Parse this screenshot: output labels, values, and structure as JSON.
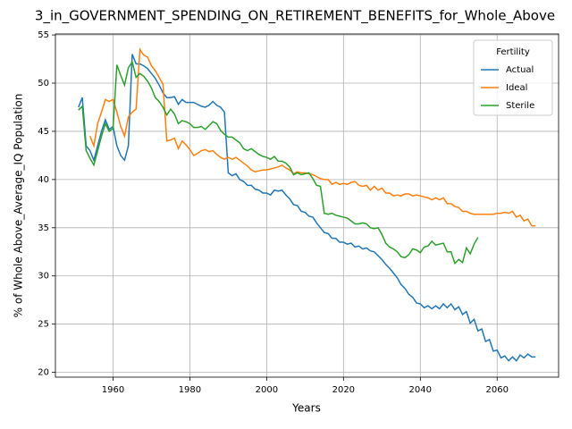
{
  "chart_data": {
    "type": "line",
    "title": "3_in_GOVERNMENT_SPENDING_ON_RETIREMENT_BENEFITS_for_Whole_Above",
    "xlabel": "Years",
    "ylabel": "% of Whole Above_Average_IQ Population",
    "legend_title": "Fertility",
    "legend": "upper right",
    "grid": true,
    "xlim": [
      1945,
      2076
    ],
    "ylim": [
      19.5,
      55.1
    ],
    "xticks": [
      1960,
      1980,
      2000,
      2020,
      2040,
      2060
    ],
    "yticks": [
      20,
      25,
      30,
      35,
      40,
      45,
      50,
      55
    ],
    "x": [
      1951,
      1952,
      1953,
      1954,
      1955,
      1956,
      1957,
      1958,
      1959,
      1960,
      1961,
      1962,
      1963,
      1964,
      1965,
      1966,
      1967,
      1968,
      1969,
      1970,
      1971,
      1972,
      1973,
      1974,
      1975,
      1976,
      1977,
      1978,
      1979,
      1980,
      1981,
      1982,
      1983,
      1984,
      1985,
      1986,
      1987,
      1988,
      1989,
      1990,
      1991,
      1992,
      1993,
      1994,
      1995,
      1996,
      1997,
      1998,
      1999,
      2000,
      2001,
      2002,
      2003,
      2004,
      2005,
      2006,
      2007,
      2008,
      2009,
      2010,
      2011,
      2012,
      2013,
      2014,
      2015,
      2016,
      2017,
      2018,
      2019,
      2020,
      2021,
      2022,
      2023,
      2024,
      2025,
      2026,
      2027,
      2028,
      2029,
      2030,
      2031,
      2032,
      2033,
      2034,
      2035,
      2036,
      2037,
      2038,
      2039,
      2040,
      2041,
      2042,
      2043,
      2044,
      2045,
      2046,
      2047,
      2048,
      2049,
      2050,
      2051,
      2052,
      2053,
      2054,
      2055,
      2056,
      2057,
      2058,
      2059,
      2060,
      2061,
      2062,
      2063,
      2064,
      2065,
      2066,
      2067,
      2068,
      2069,
      2070
    ],
    "series": [
      {
        "name": "Actual",
        "color": "#1f77b4",
        "values": [
          47.5,
          48.5,
          43.5,
          43,
          42,
          43.5,
          45,
          46.2,
          45.2,
          45.5,
          43.5,
          42.5,
          42,
          43.5,
          53,
          52,
          52,
          51.8,
          51.5,
          51,
          50.5,
          49.8,
          49,
          48.5,
          48.5,
          48.6,
          47.8,
          48.3,
          48,
          48,
          48,
          47.8,
          47.6,
          47.5,
          47.7,
          48.1,
          47.7,
          47.5,
          47,
          40.7,
          40.4,
          40.6,
          40,
          39.8,
          39.4,
          39.4,
          39,
          38.9,
          38.6,
          38.6,
          38.4,
          38.9,
          38.8,
          38.9,
          38.4,
          38,
          37.4,
          37.3,
          36.7,
          36.6,
          36.2,
          36.1,
          35.5,
          35,
          34.5,
          34.4,
          33.9,
          33.9,
          33.5,
          33.5,
          33.3,
          33.4,
          33,
          33.1,
          32.8,
          32.9,
          32.6,
          32.5,
          32.1,
          31.7,
          31.2,
          30.8,
          30.3,
          29.8,
          29.1,
          28.7,
          28.1,
          27.8,
          27.2,
          27.1,
          26.7,
          26.9,
          26.6,
          26.9,
          26.6,
          27.1,
          26.7,
          27.1,
          26.5,
          26.8,
          26,
          26.3,
          25.1,
          25.5,
          24.3,
          24.5,
          23.2,
          23.4,
          22.2,
          22.3,
          21.5,
          21.7,
          21.2,
          21.6,
          21.2,
          21.8,
          21.5,
          21.9,
          21.6,
          21.6
        ]
      },
      {
        "name": "Ideal",
        "color": "#ff7f0e",
        "values": [
          null,
          null,
          null,
          44.5,
          43.5,
          45.8,
          47,
          48.3,
          48.1,
          48.3,
          47,
          45.5,
          44.5,
          46.5,
          47,
          47.3,
          53.5,
          52.9,
          52.7,
          51.8,
          51.3,
          50.6,
          49.9,
          44,
          44.1,
          44.3,
          43.2,
          44,
          43.6,
          43.1,
          42.5,
          42.7,
          43,
          43.1,
          42.9,
          43,
          42.6,
          42.3,
          42.1,
          42.3,
          42.1,
          42.3,
          42,
          41.7,
          41.4,
          41,
          40.8,
          40.9,
          41,
          41,
          41.1,
          41.2,
          41.3,
          41.5,
          41.2,
          41,
          40.6,
          40.8,
          40.7,
          40.7,
          40.6,
          40.5,
          40.3,
          40.1,
          40,
          40,
          39.5,
          39.7,
          39.5,
          39.6,
          39.5,
          39.7,
          39.8,
          39.4,
          39.3,
          39.4,
          38.9,
          39.3,
          38.9,
          39.1,
          38.6,
          38.6,
          38.3,
          38.4,
          38.3,
          38.5,
          38.5,
          38.3,
          38.4,
          38.3,
          38.2,
          38.1,
          37.9,
          38.1,
          37.9,
          38.1,
          37.5,
          37.5,
          37.2,
          37.1,
          36.7,
          36.7,
          36.5,
          36.4,
          36.4,
          36.4,
          36.4,
          36.4,
          36.4,
          36.5,
          36.5,
          36.6,
          36.5,
          36.7,
          36.1,
          36.3,
          35.7,
          35.9,
          35.2,
          35.2
        ]
      },
      {
        "name": "Sterile",
        "color": "#2ca02c",
        "values": [
          47.2,
          47.6,
          43,
          42.2,
          41.5,
          43,
          44.5,
          45.8,
          45,
          45.3,
          51.9,
          50.8,
          49.8,
          51.6,
          52.2,
          50.6,
          51,
          50.7,
          50.2,
          49.5,
          48.5,
          48.1,
          47.5,
          46.7,
          47.3,
          46.8,
          45.8,
          46.1,
          46,
          45.8,
          45.4,
          45.4,
          45.5,
          45.2,
          45.6,
          46,
          45.8,
          45.1,
          44.7,
          44.4,
          44.4,
          44.1,
          43.8,
          43.2,
          43,
          43.2,
          42.9,
          42.6,
          42.4,
          42.3,
          42.1,
          42.4,
          41.9,
          41.9,
          41.7,
          41.3,
          40.5,
          40.7,
          40.5,
          40.6,
          40.7,
          40.1,
          39.4,
          39.3,
          36.5,
          36.4,
          36.5,
          36.3,
          36.2,
          36.1,
          36,
          35.7,
          35.4,
          35.4,
          35.5,
          35.4,
          35,
          34.9,
          35,
          34.3,
          33.4,
          33,
          32.8,
          32.5,
          32,
          31.9,
          32.2,
          32.8,
          32.7,
          32.4,
          33,
          33.1,
          33.6,
          33.2,
          33.3,
          33.4,
          32.5,
          32.5,
          31.3,
          31.7,
          31.4,
          32.9,
          32.3,
          33.3,
          34,
          null,
          null,
          null,
          null,
          null,
          null,
          null,
          null,
          null,
          null,
          null,
          null,
          null,
          null,
          null
        ]
      }
    ]
  }
}
